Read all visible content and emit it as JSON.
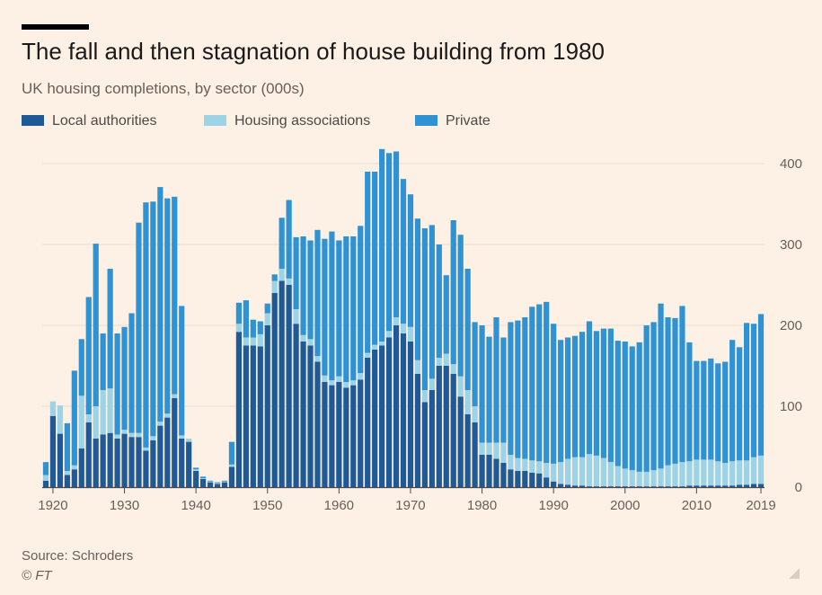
{
  "header": {
    "title": "The fall and then stagnation of house building from 1980",
    "subtitle": "UK housing completions, by sector (000s)"
  },
  "footer": {
    "source": "Source: Schroders",
    "copyright": "© FT"
  },
  "colors": {
    "background": "#fdf0e4",
    "local_authorities": "#1f5a96",
    "housing_associations": "#9cd3e6",
    "private": "#2f93d3",
    "grid": "#e9dbcf"
  },
  "chart_data": {
    "type": "bar",
    "stacked": true,
    "title": "The fall and then stagnation of house building from 1980",
    "subtitle": "UK housing completions, by sector (000s)",
    "xlabel": "",
    "ylabel": "",
    "ylim": [
      0,
      425
    ],
    "yticks": [
      0,
      100,
      200,
      300,
      400
    ],
    "y_axis_side": "right",
    "xticks": [
      "1920",
      "1930",
      "1940",
      "1950",
      "1960",
      "1970",
      "1980",
      "1990",
      "2000",
      "2010",
      "2019"
    ],
    "grid": true,
    "legend_position": "top-left",
    "categories": [
      1919,
      1920,
      1921,
      1922,
      1923,
      1924,
      1925,
      1926,
      1927,
      1928,
      1929,
      1930,
      1931,
      1932,
      1933,
      1934,
      1935,
      1936,
      1937,
      1938,
      1939,
      1940,
      1941,
      1942,
      1943,
      1944,
      1945,
      1946,
      1947,
      1948,
      1949,
      1950,
      1951,
      1952,
      1953,
      1954,
      1955,
      1956,
      1957,
      1958,
      1959,
      1960,
      1961,
      1962,
      1963,
      1964,
      1965,
      1966,
      1967,
      1968,
      1969,
      1970,
      1971,
      1972,
      1973,
      1974,
      1975,
      1976,
      1977,
      1978,
      1979,
      1980,
      1981,
      1982,
      1983,
      1984,
      1985,
      1986,
      1987,
      1988,
      1989,
      1990,
      1991,
      1992,
      1993,
      1994,
      1995,
      1996,
      1997,
      1998,
      1999,
      2000,
      2001,
      2002,
      2003,
      2004,
      2005,
      2006,
      2007,
      2008,
      2009,
      2010,
      2011,
      2012,
      2013,
      2014,
      2015,
      2016,
      2017,
      2018,
      2019
    ],
    "series": [
      {
        "name": "Local authorities",
        "color": "#1f5a96",
        "values": [
          8,
          88,
          66,
          15,
          22,
          48,
          80,
          60,
          65,
          67,
          60,
          66,
          62,
          62,
          45,
          58,
          76,
          86,
          110,
          60,
          56,
          20,
          10,
          6,
          4,
          6,
          25,
          192,
          175,
          175,
          174,
          200,
          240,
          255,
          250,
          202,
          180,
          175,
          155,
          130,
          126,
          130,
          123,
          126,
          133,
          160,
          170,
          175,
          185,
          200,
          190,
          180,
          140,
          105,
          120,
          150,
          150,
          140,
          112,
          90,
          80,
          40,
          40,
          35,
          30,
          22,
          20,
          20,
          18,
          17,
          12,
          7,
          4,
          3,
          2,
          2,
          1,
          1,
          1,
          1,
          1,
          1,
          1,
          1,
          1,
          1,
          1,
          1,
          1,
          1,
          2,
          2,
          2,
          2,
          2,
          2,
          2,
          3,
          3,
          4,
          4
        ]
      },
      {
        "name": "Housing associations",
        "color": "#9cd3e6",
        "values": [
          7,
          18,
          35,
          5,
          5,
          65,
          10,
          40,
          55,
          55,
          5,
          5,
          5,
          5,
          4,
          5,
          5,
          5,
          5,
          4,
          4,
          2,
          1,
          1,
          1,
          1,
          3,
          10,
          10,
          10,
          15,
          15,
          15,
          15,
          8,
          18,
          8,
          8,
          7,
          8,
          6,
          7,
          7,
          6,
          8,
          6,
          6,
          5,
          8,
          10,
          12,
          18,
          17,
          15,
          14,
          10,
          15,
          12,
          25,
          30,
          20,
          15,
          15,
          20,
          25,
          18,
          16,
          15,
          15,
          15,
          18,
          22,
          27,
          32,
          35,
          35,
          40,
          38,
          35,
          30,
          25,
          22,
          20,
          18,
          18,
          20,
          22,
          26,
          28,
          30,
          30,
          32,
          32,
          32,
          30,
          28,
          30,
          30,
          30,
          33,
          35
        ]
      },
      {
        "name": "Private",
        "color": "#2f93d3",
        "values": [
          16,
          0,
          0,
          59,
          117,
          70,
          145,
          201,
          70,
          148,
          125,
          127,
          148,
          260,
          303,
          290,
          290,
          266,
          244,
          160,
          0,
          2,
          2,
          1,
          1,
          1,
          28,
          26,
          46,
          22,
          16,
          12,
          8,
          63,
          97,
          89,
          122,
          122,
          156,
          169,
          184,
          168,
          180,
          178,
          182,
          224,
          214,
          238,
          220,
          205,
          179,
          164,
          175,
          200,
          190,
          140,
          97,
          178,
          175,
          150,
          104,
          145,
          131,
          155,
          130,
          164,
          170,
          175,
          190,
          194,
          199,
          173,
          151,
          150,
          150,
          155,
          164,
          154,
          160,
          165,
          155,
          157,
          153,
          160,
          181,
          183,
          204,
          183,
          180,
          193,
          147,
          122,
          122,
          125,
          121,
          125,
          150,
          140,
          170,
          165,
          175
        ]
      }
    ]
  }
}
